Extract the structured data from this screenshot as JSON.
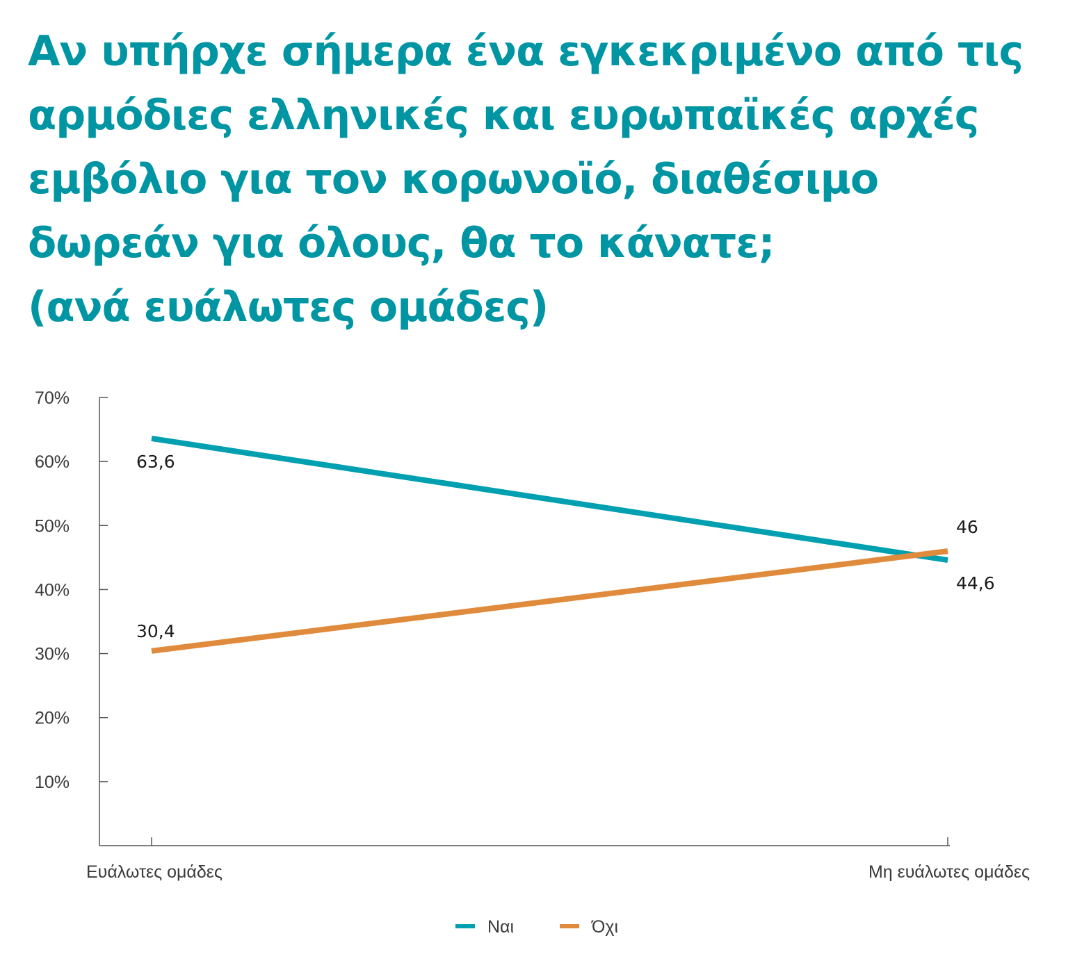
{
  "title_lines": [
    "Αν υπήρχε σήμερα ένα εγκεκριμένο από τις",
    "αρμόδιες ελληνικές και ευρωπαϊκές αρχές",
    "εμβόλιο για τον κορωνοϊό, διαθέσιμο",
    "δωρεάν για όλους, θα το κάνατε;",
    "(ανά ευάλωτες ομάδες)"
  ],
  "colors": {
    "title": "#0095a3",
    "nai": "#00a0b0",
    "ochi": "#e08a3c",
    "axis": "#555555",
    "text": "#3a3a3a"
  },
  "chart_data": {
    "type": "line",
    "categories": [
      "Ευάλωτες ομάδες",
      "Μη ευάλωτες ομάδες"
    ],
    "y_tick_labels": [
      "10%",
      "20%",
      "30%",
      "40%",
      "50%",
      "60%",
      "70%"
    ],
    "y_ticks": [
      10,
      20,
      30,
      40,
      50,
      60,
      70
    ],
    "ylim": [
      0,
      70
    ],
    "grid": false,
    "legend_position": "bottom-center",
    "series": [
      {
        "name": "Ναι",
        "values": [
          63.6,
          44.6
        ],
        "labels": [
          "63,6",
          "44,6"
        ],
        "color": "#00a0b0"
      },
      {
        "name": "Όχι",
        "values": [
          30.4,
          46
        ],
        "labels": [
          "30,4",
          "46"
        ],
        "color": "#e08a3c"
      }
    ]
  }
}
